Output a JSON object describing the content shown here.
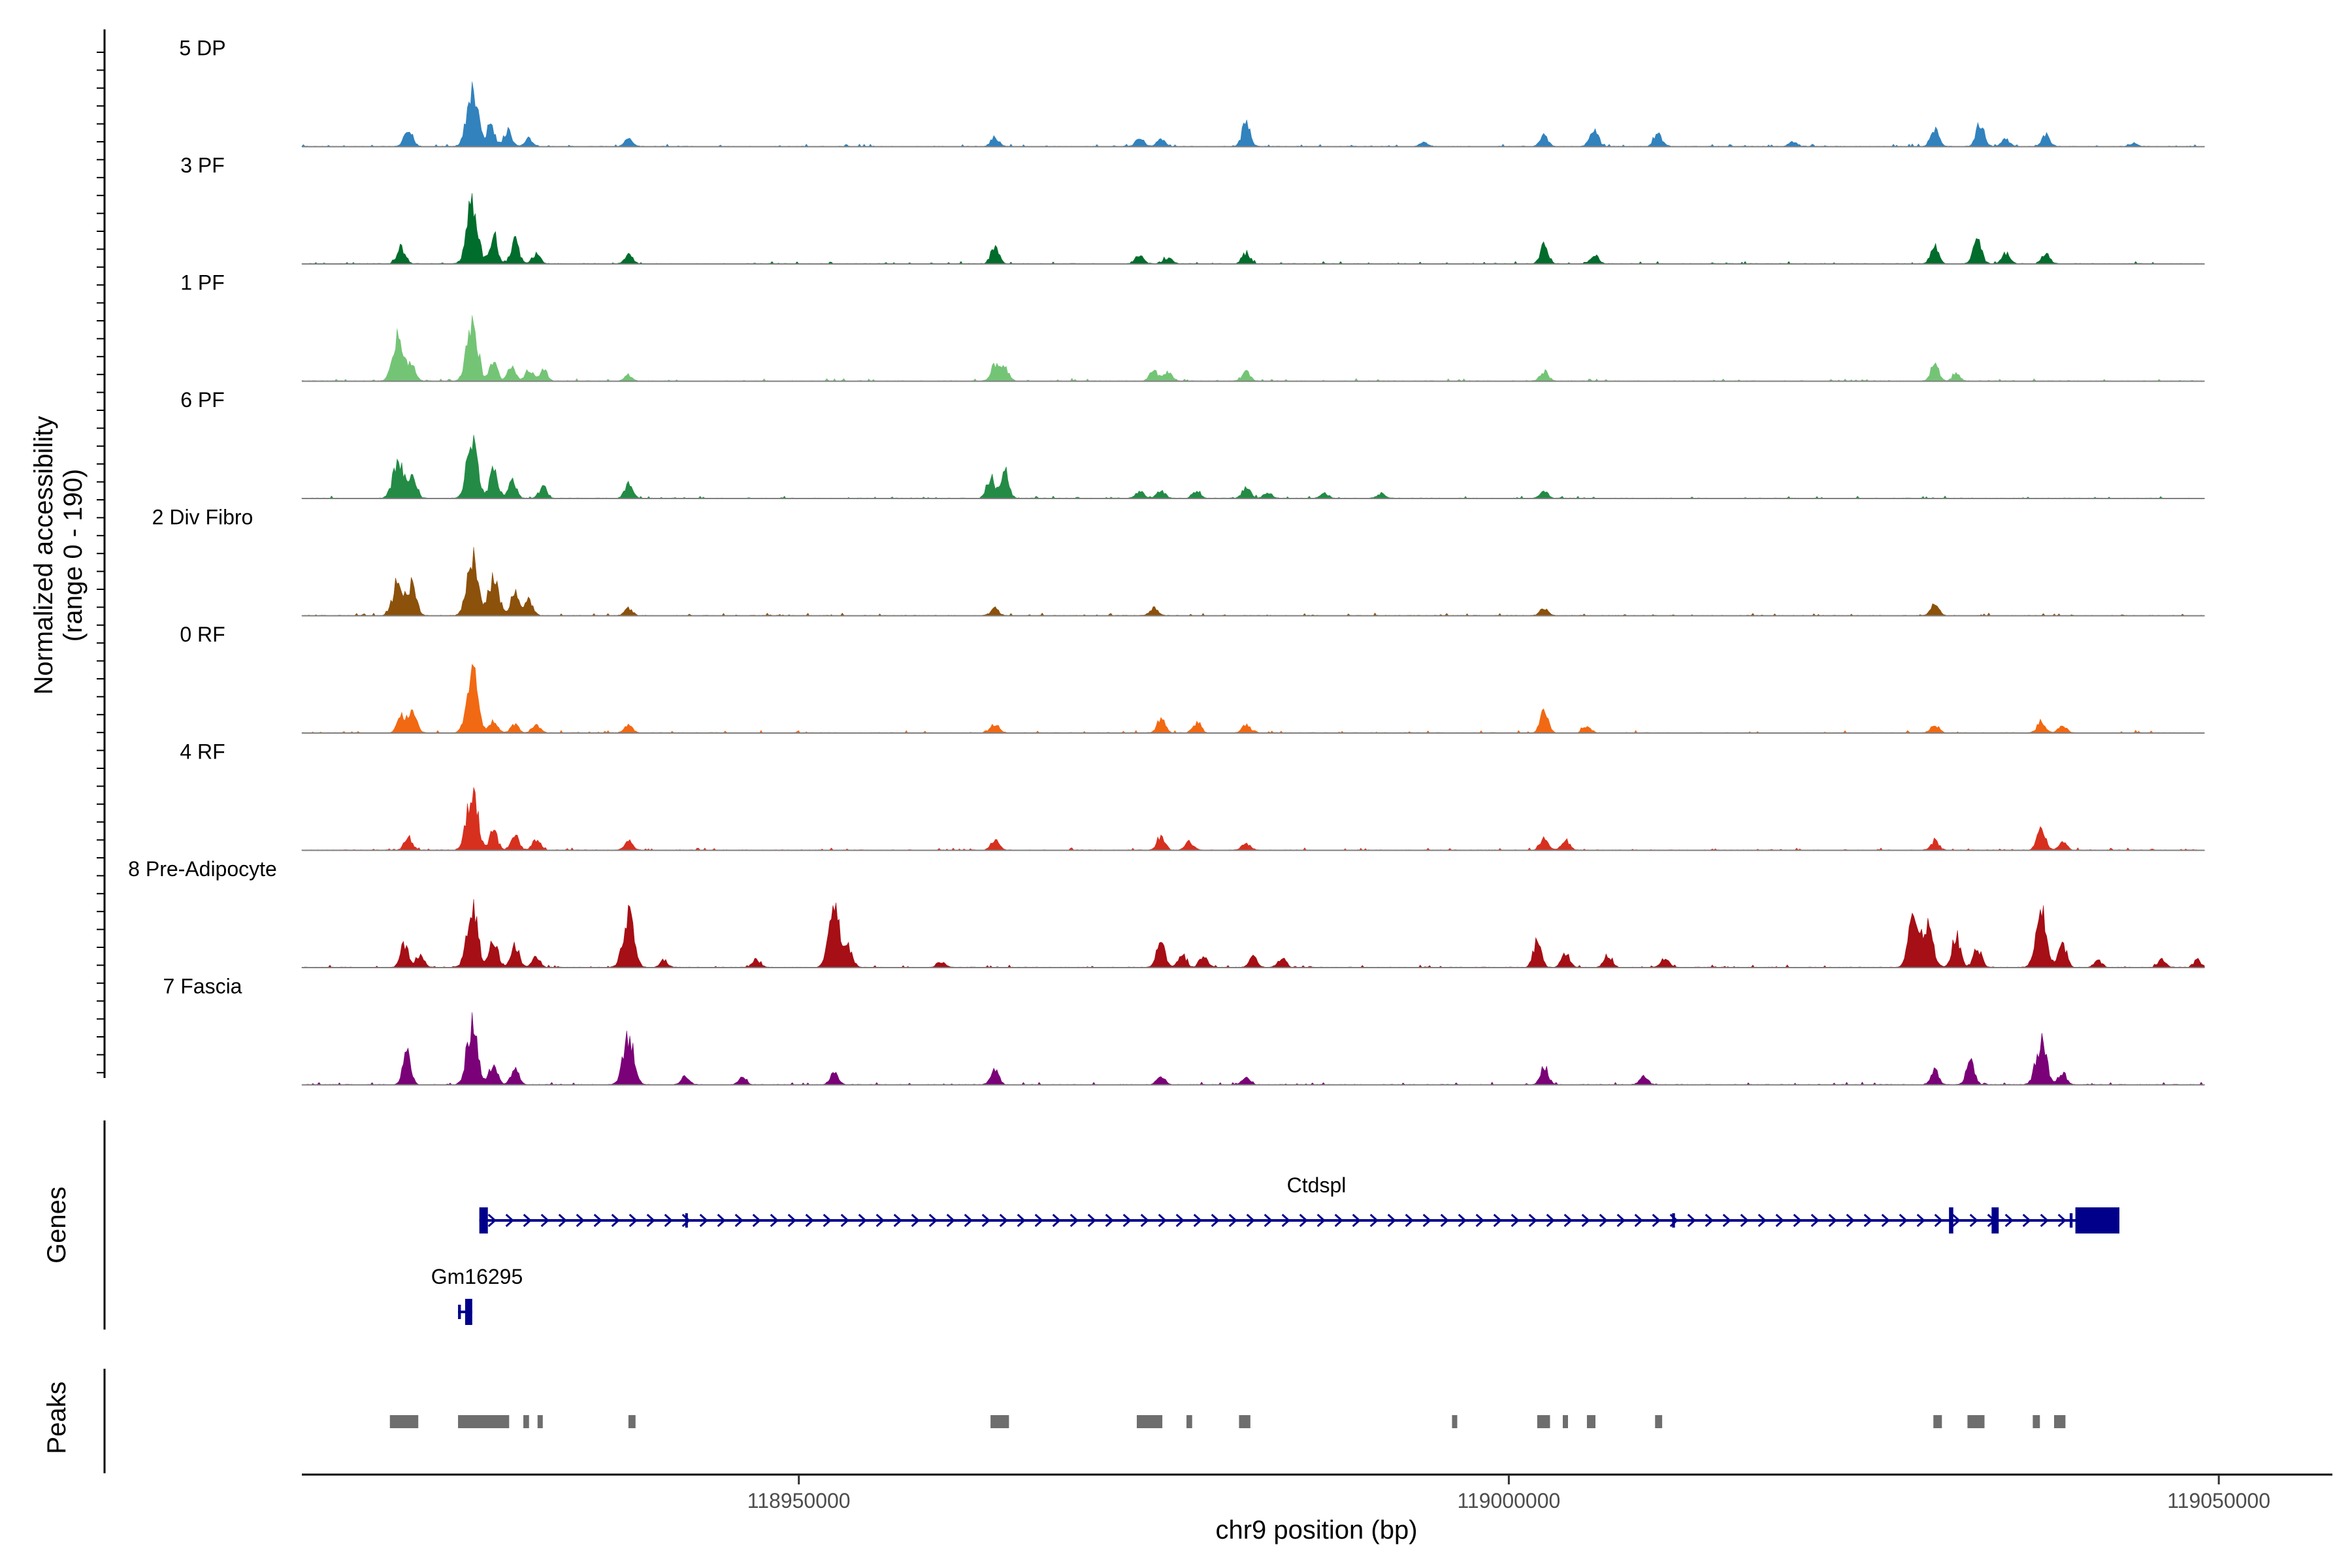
{
  "chart_data": {
    "type": "area",
    "title": "",
    "region": "chr9",
    "xlabel": "chr9 position (bp)",
    "ylabel_line1": "Normalized accessibility",
    "ylabel_line2": "(range 0 - 190)",
    "genes_label": "Genes",
    "peaks_label": "Peaks",
    "xlim": [
      118915000,
      119058000
    ],
    "ylim": [
      0,
      190
    ],
    "x_ticks": [
      {
        "value": 118950000,
        "label": "118950000"
      },
      {
        "value": 119000000,
        "label": "119000000"
      },
      {
        "value": 119050000,
        "label": "119050000"
      }
    ],
    "signal_range": [
      118915000,
      119049000
    ],
    "series": [
      {
        "name": "5 DP",
        "color": "#3182bd",
        "peaks": [
          [
            118922500,
            62
          ],
          [
            118927000,
            190
          ],
          [
            118928300,
            66
          ],
          [
            118929500,
            52
          ],
          [
            118931000,
            24
          ],
          [
            118938000,
            22
          ],
          [
            118963800,
            28
          ],
          [
            118974000,
            28
          ],
          [
            118975500,
            22
          ],
          [
            118981500,
            75
          ],
          [
            118994000,
            12
          ],
          [
            119002500,
            35
          ],
          [
            119006000,
            62
          ],
          [
            119010500,
            38
          ],
          [
            119020000,
            14
          ],
          [
            119030000,
            52
          ],
          [
            119033200,
            72
          ],
          [
            119035000,
            22
          ],
          [
            119037800,
            40
          ],
          [
            119044000,
            10
          ]
        ]
      },
      {
        "name": "3 PF",
        "color": "#006d2c",
        "peaks": [
          [
            118922000,
            52
          ],
          [
            118927000,
            190
          ],
          [
            118928500,
            90
          ],
          [
            118930000,
            70
          ],
          [
            118931500,
            30
          ],
          [
            118938000,
            30
          ],
          [
            118963800,
            52
          ],
          [
            118974000,
            28
          ],
          [
            118976000,
            20
          ],
          [
            118981500,
            35
          ],
          [
            119002500,
            60
          ],
          [
            119006000,
            30
          ],
          [
            119030000,
            52
          ],
          [
            119033000,
            88
          ],
          [
            119035000,
            32
          ],
          [
            119037800,
            30
          ]
        ]
      },
      {
        "name": "1 PF",
        "color": "#74c476",
        "peaks": [
          [
            118921800,
            148
          ],
          [
            118922700,
            50
          ],
          [
            118927000,
            190
          ],
          [
            118928500,
            58
          ],
          [
            118929800,
            46
          ],
          [
            118931000,
            34
          ],
          [
            118932000,
            34
          ],
          [
            118938000,
            18
          ],
          [
            118963800,
            48
          ],
          [
            118964500,
            42
          ],
          [
            118975000,
            34
          ],
          [
            118976000,
            28
          ],
          [
            118981500,
            28
          ],
          [
            119002500,
            30
          ],
          [
            119030000,
            54
          ],
          [
            119031500,
            20
          ]
        ]
      },
      {
        "name": "6 PF",
        "color": "#238b45",
        "peaks": [
          [
            118921800,
            118
          ],
          [
            118922800,
            70
          ],
          [
            118927000,
            190
          ],
          [
            118928500,
            88
          ],
          [
            118929800,
            60
          ],
          [
            118932000,
            36
          ],
          [
            118938000,
            42
          ],
          [
            118963500,
            66
          ],
          [
            118964500,
            84
          ],
          [
            118974000,
            22
          ],
          [
            118975500,
            26
          ],
          [
            118978000,
            24
          ],
          [
            118981500,
            34
          ],
          [
            118983000,
            18
          ],
          [
            118987000,
            16
          ],
          [
            118991000,
            14
          ],
          [
            119002500,
            20
          ]
        ]
      },
      {
        "name": "2 Div Fibro",
        "color": "#8c510a",
        "peaks": [
          [
            118921800,
            110
          ],
          [
            118922800,
            95
          ],
          [
            118927000,
            190
          ],
          [
            118928500,
            110
          ],
          [
            118930000,
            76
          ],
          [
            118931000,
            50
          ],
          [
            118938000,
            24
          ],
          [
            118963800,
            22
          ],
          [
            118975000,
            22
          ],
          [
            119002500,
            24
          ],
          [
            119030000,
            40
          ]
        ]
      },
      {
        "name": "0 RF",
        "color": "#f16913",
        "peaks": [
          [
            118922000,
            52
          ],
          [
            118922800,
            64
          ],
          [
            118927000,
            190
          ],
          [
            118928500,
            40
          ],
          [
            118930000,
            26
          ],
          [
            118931500,
            24
          ],
          [
            118938000,
            28
          ],
          [
            118963800,
            28
          ],
          [
            118975500,
            44
          ],
          [
            118978000,
            32
          ],
          [
            118981500,
            24
          ],
          [
            119002500,
            68
          ],
          [
            119005500,
            22
          ],
          [
            119030000,
            26
          ],
          [
            119037500,
            36
          ],
          [
            119039000,
            22
          ]
        ]
      },
      {
        "name": "4 RF",
        "color": "#d7301f",
        "peaks": [
          [
            118922500,
            40
          ],
          [
            118927000,
            190
          ],
          [
            118928500,
            60
          ],
          [
            118930000,
            44
          ],
          [
            118931500,
            34
          ],
          [
            118938000,
            28
          ],
          [
            118963800,
            32
          ],
          [
            118975500,
            40
          ],
          [
            118977500,
            26
          ],
          [
            118981500,
            22
          ],
          [
            119002500,
            36
          ],
          [
            119004000,
            30
          ],
          [
            119030000,
            30
          ],
          [
            119037500,
            76
          ],
          [
            119039000,
            24
          ]
        ]
      },
      {
        "name": "8 Pre-Adipocyte",
        "color": "#a50f15",
        "peaks": [
          [
            118922200,
            76
          ],
          [
            118923300,
            40
          ],
          [
            118927000,
            190
          ],
          [
            118928500,
            96
          ],
          [
            118930000,
            72
          ],
          [
            118931500,
            32
          ],
          [
            118938000,
            170
          ],
          [
            118940500,
            22
          ],
          [
            118947000,
            26
          ],
          [
            118952500,
            190
          ],
          [
            118953500,
            60
          ],
          [
            118960000,
            18
          ],
          [
            118975500,
            88
          ],
          [
            118977000,
            40
          ],
          [
            118978500,
            38
          ],
          [
            118982000,
            30
          ],
          [
            118984000,
            28
          ],
          [
            119002000,
            80
          ],
          [
            119004000,
            44
          ],
          [
            119007000,
            40
          ],
          [
            119011000,
            28
          ],
          [
            119028500,
            144
          ],
          [
            119029500,
            122
          ],
          [
            119031500,
            100
          ],
          [
            119033000,
            60
          ],
          [
            119037500,
            170
          ],
          [
            119039000,
            76
          ],
          [
            119041500,
            22
          ],
          [
            119046000,
            24
          ],
          [
            119048500,
            22
          ]
        ]
      },
      {
        "name": "7 Fascia",
        "color": "#7a0177",
        "peaks": [
          [
            118922400,
            100
          ],
          [
            118927000,
            190
          ],
          [
            118928500,
            66
          ],
          [
            118930000,
            48
          ],
          [
            118938000,
            150
          ],
          [
            118942000,
            24
          ],
          [
            118946000,
            20
          ],
          [
            118952500,
            42
          ],
          [
            118963800,
            52
          ],
          [
            118975500,
            28
          ],
          [
            118981500,
            22
          ],
          [
            119002500,
            56
          ],
          [
            119009500,
            30
          ],
          [
            119030000,
            40
          ],
          [
            119032500,
            70
          ],
          [
            119037500,
            128
          ],
          [
            119039000,
            38
          ]
        ]
      }
    ],
    "genes": [
      {
        "name": "Ctdspl",
        "start": 118927500,
        "end": 119043000,
        "strand": "+",
        "exons": [
          [
            118927500,
            118928100
          ],
          [
            118942000,
            118942150
          ],
          [
            119011500,
            119011700
          ],
          [
            119031000,
            119031300
          ],
          [
            119034000,
            119034500
          ],
          [
            119039500,
            119039700
          ],
          [
            119039900,
            119043000
          ]
        ],
        "color": "#00008b"
      },
      {
        "name": "Gm16295",
        "start": 118926000,
        "end": 118927000,
        "strand": "-",
        "exons": [
          [
            118926000,
            118926200
          ],
          [
            118926500,
            118927000
          ]
        ],
        "color": "#00008b"
      }
    ],
    "peak_regions": [
      [
        118921200,
        118923200
      ],
      [
        118926000,
        118929600
      ],
      [
        118930600,
        118931000
      ],
      [
        118931600,
        118931900
      ],
      [
        118938000,
        118938500
      ],
      [
        118963500,
        118964800
      ],
      [
        118973800,
        118975600
      ],
      [
        118977300,
        118977700
      ],
      [
        118981000,
        118981800
      ],
      [
        118996000,
        118996300
      ],
      [
        119002000,
        119002900
      ],
      [
        119003800,
        119004100
      ],
      [
        119005500,
        119006100
      ],
      [
        119010300,
        119010800
      ],
      [
        119029900,
        119030500
      ],
      [
        119032300,
        119033500
      ],
      [
        119036900,
        119037400
      ],
      [
        119038400,
        119039200
      ]
    ]
  }
}
